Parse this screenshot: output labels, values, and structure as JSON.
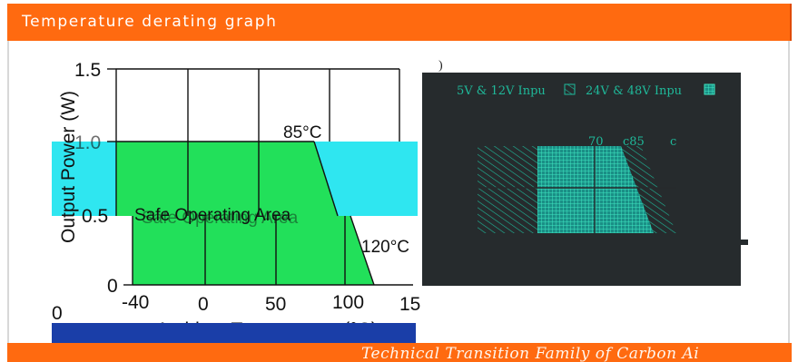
{
  "header": {
    "title": "Temperature derating graph"
  },
  "footer": {
    "text": "Technical Transition Family of Carbon Ai"
  },
  "chart_left": {
    "ylabel": "Output Power (W)",
    "xlabel": "Ambient Temperature (°C)",
    "y_ticks": [
      "1.5",
      "1.0",
      "0.5",
      "0"
    ],
    "x_ticks": [
      "-40",
      "0",
      "50",
      "100",
      "15"
    ],
    "area_label": "Safe Operating Area",
    "ann_85": "85°C",
    "ann_120": "120°C",
    "stray_zero": "0"
  },
  "chart_right": {
    "legend_5v": "5V & 12V Inpu",
    "legend_24v": "24V & 48V Inpu",
    "ann_70": "70",
    "ann_c85": "c85",
    "ann_c": "c",
    "stray_mark": ")"
  },
  "colors": {
    "accent": "#ff6a10",
    "safe_area": "#22e05a",
    "cyan_block": "#2fe6f0",
    "dark_panel": "#262b2d",
    "hatch": "#1fb99a",
    "navy_bar": "#1a3ea8"
  },
  "chart_data": [
    {
      "type": "area",
      "xlabel": "Ambient Temperature (°C)",
      "ylabel": "Output Power (W)",
      "xlim": [
        -40,
        150
      ],
      "ylim": [
        0,
        1.5
      ],
      "series": [
        {
          "x": [
            -40,
            85,
            120
          ],
          "y": [
            1.0,
            1.0,
            0
          ]
        }
      ],
      "annotations": [
        "85°C",
        "120°C",
        "Safe Operating Area"
      ]
    },
    {
      "type": "area",
      "legend": [
        "5V & 12V Inpu",
        "24V & 48V Inpu"
      ],
      "annotations": [
        "70",
        "c85",
        "c"
      ]
    }
  ]
}
